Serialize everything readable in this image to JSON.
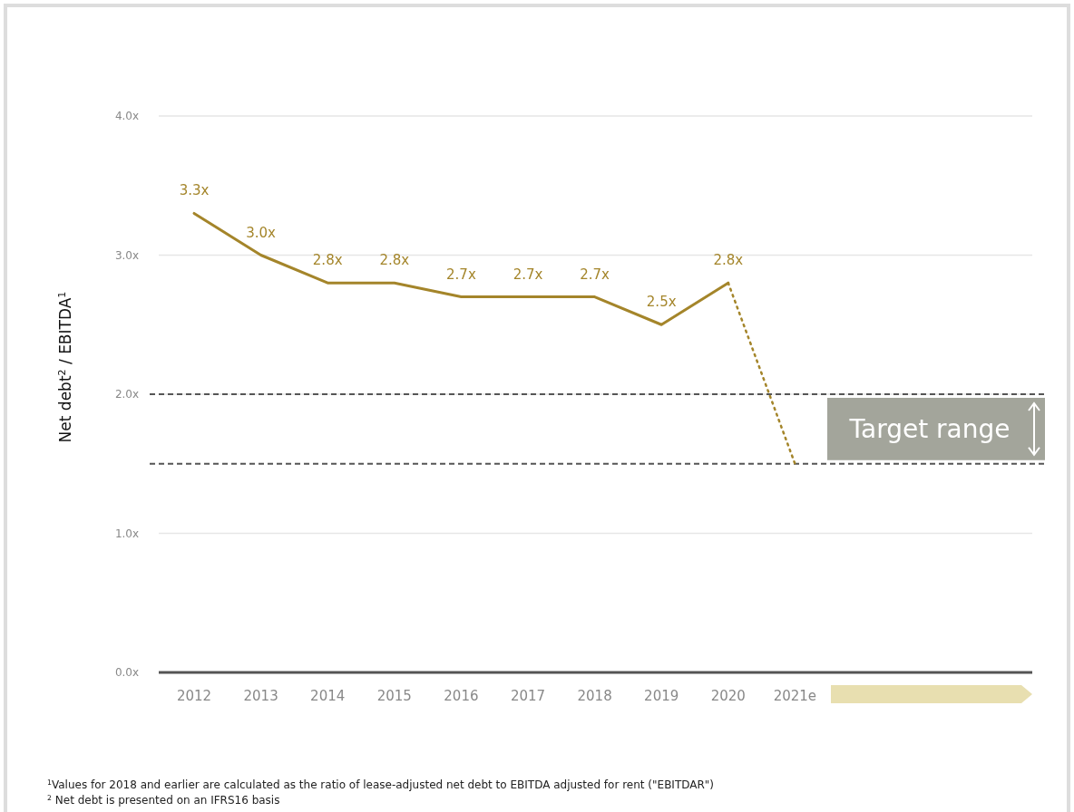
{
  "chart_data": {
    "type": "line",
    "ylabel": "Net debt$^{2}$ / EBITDA$^{1}$",
    "categories": [
      "2012",
      "2013",
      "2014",
      "2015",
      "2016",
      "2017",
      "2018",
      "2019",
      "2020",
      "2021e"
    ],
    "series": [
      {
        "color": "#a4852a",
        "values": [
          3.3,
          3.0,
          2.8,
          2.8,
          2.7,
          2.7,
          2.7,
          2.5,
          2.8,
          null
        ],
        "value_labels": [
          "3.3x",
          "3.0x",
          "2.8x",
          "2.8x",
          "2.7x",
          "2.7x",
          "2.7x",
          "2.5x",
          "2.8x",
          null
        ]
      },
      {
        "color": "#a4852a",
        "line_style": "dotted",
        "values": [
          null,
          null,
          null,
          null,
          null,
          null,
          null,
          null,
          2.8,
          1.5
        ]
      }
    ],
    "ylim": [
      0,
      4
    ],
    "yticks": [
      {
        "value": 0,
        "label": "0.0x"
      },
      {
        "value": 1,
        "label": "1.0x"
      },
      {
        "value": 2,
        "label": "2.0x"
      },
      {
        "value": 3,
        "label": "3.0x"
      },
      {
        "value": 4,
        "label": "4.0x"
      }
    ],
    "grid": "y",
    "ref_lines": [
      {
        "axis": "y",
        "value": 2.0,
        "line_style": "dashed",
        "color": "#555555"
      },
      {
        "axis": "y",
        "value": 1.5,
        "line_style": "dashed",
        "color": "#555555"
      }
    ],
    "annotations": [
      "Target range",
      "$^{1}$Values for 2018 and earlier are calculated as the ratio of lease-adjusted net debt to EBITDA adjusted for rent (\"EBITDAR\")",
      "$^{2}$ Net debt is presented on an IFRS16 basis"
    ]
  }
}
